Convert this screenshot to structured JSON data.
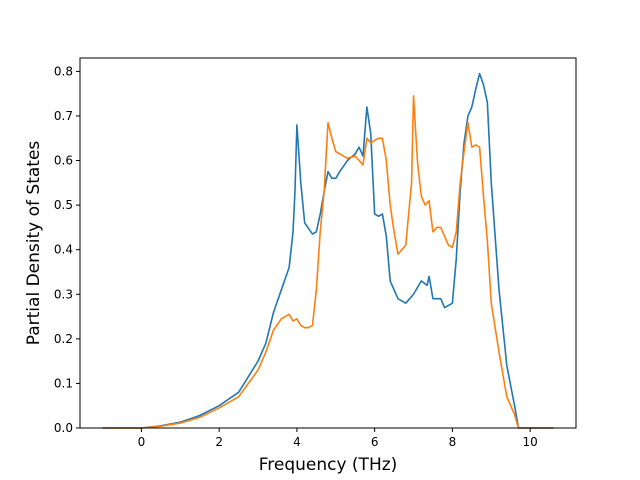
{
  "chart_data": {
    "type": "line",
    "title": "",
    "xlabel": "Frequency (THz)",
    "ylabel": "Partial Density of States",
    "xlim": [
      -1.58,
      11.18
    ],
    "ylim": [
      0.0,
      0.83
    ],
    "xticks": [
      0,
      2,
      4,
      6,
      8,
      10
    ],
    "yticks": [
      0.0,
      0.1,
      0.2,
      0.3,
      0.4,
      0.5,
      0.6,
      0.7,
      0.8
    ],
    "xtick_labels": [
      "0",
      "2",
      "4",
      "6",
      "8",
      "10"
    ],
    "ytick_labels": [
      "0.0",
      "0.1",
      "0.2",
      "0.3",
      "0.4",
      "0.5",
      "0.6",
      "0.7",
      "0.8"
    ],
    "grid": false,
    "legend": "none",
    "series": [
      {
        "color": "#1f77b4",
        "x": [
          -1.0,
          0.0,
          0.5,
          1.0,
          1.5,
          2.0,
          2.5,
          3.0,
          3.2,
          3.4,
          3.6,
          3.8,
          3.9,
          3.95,
          4.0,
          4.1,
          4.2,
          4.4,
          4.5,
          4.6,
          4.7,
          4.8,
          4.9,
          5.0,
          5.1,
          5.3,
          5.5,
          5.6,
          5.7,
          5.8,
          5.9,
          6.0,
          6.1,
          6.2,
          6.3,
          6.4,
          6.6,
          6.8,
          7.0,
          7.2,
          7.35,
          7.4,
          7.5,
          7.6,
          7.7,
          7.8,
          8.0,
          8.1,
          8.2,
          8.3,
          8.4,
          8.5,
          8.6,
          8.7,
          8.8,
          8.9,
          9.0,
          9.2,
          9.4,
          9.6,
          9.7,
          10.0,
          10.6
        ],
        "y": [
          0.0,
          0.0,
          0.005,
          0.013,
          0.028,
          0.05,
          0.08,
          0.15,
          0.19,
          0.26,
          0.31,
          0.36,
          0.44,
          0.53,
          0.68,
          0.55,
          0.46,
          0.435,
          0.44,
          0.48,
          0.53,
          0.575,
          0.56,
          0.56,
          0.575,
          0.6,
          0.615,
          0.63,
          0.61,
          0.72,
          0.66,
          0.48,
          0.475,
          0.48,
          0.43,
          0.33,
          0.29,
          0.28,
          0.3,
          0.33,
          0.32,
          0.34,
          0.29,
          0.29,
          0.29,
          0.27,
          0.28,
          0.38,
          0.53,
          0.64,
          0.7,
          0.72,
          0.76,
          0.795,
          0.77,
          0.73,
          0.55,
          0.31,
          0.14,
          0.05,
          0.0,
          0.0,
          0.0
        ]
      },
      {
        "color": "#ff7f0e",
        "x": [
          -1.0,
          0.0,
          0.5,
          1.0,
          1.5,
          2.0,
          2.5,
          3.0,
          3.2,
          3.4,
          3.6,
          3.7,
          3.8,
          3.9,
          4.0,
          4.1,
          4.2,
          4.3,
          4.4,
          4.5,
          4.6,
          4.7,
          4.8,
          4.9,
          5.0,
          5.1,
          5.3,
          5.5,
          5.6,
          5.7,
          5.8,
          5.9,
          6.0,
          6.1,
          6.2,
          6.3,
          6.4,
          6.5,
          6.6,
          6.8,
          6.95,
          7.0,
          7.1,
          7.2,
          7.3,
          7.4,
          7.5,
          7.6,
          7.7,
          7.8,
          7.9,
          8.0,
          8.1,
          8.2,
          8.3,
          8.4,
          8.5,
          8.6,
          8.7,
          8.8,
          8.9,
          9.0,
          9.2,
          9.4,
          9.6,
          9.7,
          10.0,
          10.6
        ],
        "y": [
          0.0,
          0.0,
          0.004,
          0.011,
          0.024,
          0.045,
          0.07,
          0.13,
          0.17,
          0.22,
          0.245,
          0.25,
          0.255,
          0.24,
          0.245,
          0.23,
          0.225,
          0.225,
          0.23,
          0.31,
          0.44,
          0.53,
          0.685,
          0.65,
          0.62,
          0.615,
          0.605,
          0.61,
          0.6,
          0.59,
          0.65,
          0.64,
          0.645,
          0.65,
          0.65,
          0.6,
          0.5,
          0.44,
          0.39,
          0.41,
          0.55,
          0.745,
          0.6,
          0.52,
          0.5,
          0.51,
          0.44,
          0.45,
          0.45,
          0.43,
          0.41,
          0.405,
          0.44,
          0.55,
          0.62,
          0.685,
          0.63,
          0.635,
          0.63,
          0.52,
          0.42,
          0.28,
          0.17,
          0.07,
          0.03,
          0.0,
          0.0,
          0.0
        ]
      }
    ]
  }
}
